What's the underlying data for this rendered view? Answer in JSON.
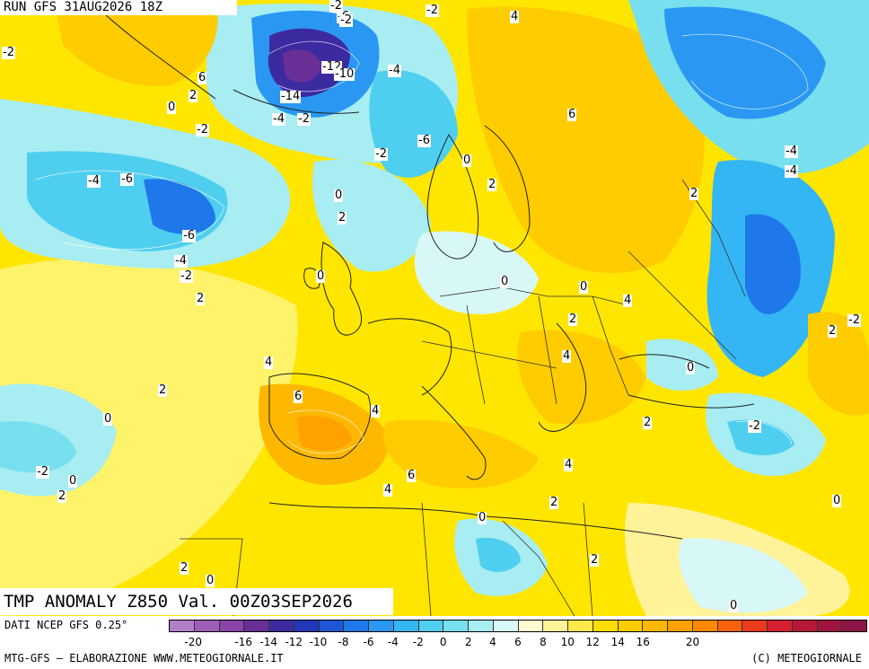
{
  "header": {
    "run": "RUN GFS 31AUG2026 18Z"
  },
  "title": "TMP ANOMALY Z850 Val. 00Z03SEP2026",
  "footer": {
    "source": "DATI NCEP GFS 0.25°",
    "credit_left": "MTG-GFS — ELABORAZIONE WWW.METEOGIORNALE.IT",
    "credit_right": "(C) METEOGIORNALE"
  },
  "colorbar": {
    "colors": [
      "#b07fc8",
      "#9d5fb8",
      "#8a44a8",
      "#6a2f96",
      "#3c2ba0",
      "#2238b8",
      "#1f56d6",
      "#1f78ea",
      "#2a98f2",
      "#35b6f4",
      "#4fcfef",
      "#78dfee",
      "#a8edf2",
      "#d8f7f7",
      "#fffbd0",
      "#fff39a",
      "#ffea4a",
      "#ffdd00",
      "#ffcc00",
      "#ffb800",
      "#ffa200",
      "#ff8800",
      "#f8620c",
      "#ec3a1c",
      "#d42030",
      "#b81838",
      "#a01440",
      "#8c1448"
    ],
    "tick_labels": [
      "-20",
      "-16",
      "-14",
      "-12",
      "-10",
      "-8",
      "-6",
      "-4",
      "-2",
      "0",
      "2",
      "4",
      "6",
      "8",
      "10",
      "12",
      "14",
      "16",
      "20"
    ]
  },
  "map_labels": [
    "-2",
    "-6",
    "4",
    "-2",
    "-2",
    "-2",
    "6",
    "2",
    "0",
    "-2",
    "-12",
    "-10",
    "-14",
    "-4",
    "-2",
    "-4",
    "6",
    "-6",
    "-2",
    "0",
    "-4",
    "-6",
    "2",
    "0",
    "2",
    "-6",
    "-4",
    "-4",
    "-4",
    "2",
    "-2",
    "0",
    "0",
    "4",
    "2",
    "2",
    "-2",
    "4",
    "2",
    "0",
    "6",
    "4",
    "4",
    "2",
    "-2",
    "0",
    "-2",
    "0",
    "2",
    "4",
    "6",
    "4",
    "2",
    "0",
    "0",
    "2",
    "2",
    "0",
    "0"
  ]
}
